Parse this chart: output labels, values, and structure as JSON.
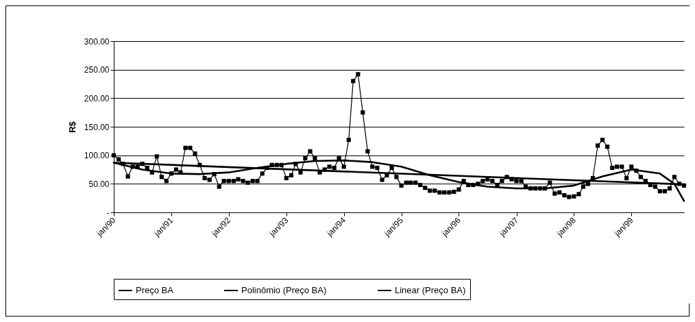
{
  "chart_data": {
    "type": "line",
    "ylabel": "R$",
    "xlim": [
      "1990-01",
      "1999-12"
    ],
    "xticks": [
      {
        "value": "1990-01",
        "label": "jan/90"
      },
      {
        "value": "1991-01",
        "label": "jan/91"
      },
      {
        "value": "1992-01",
        "label": "jan/92"
      },
      {
        "value": "1993-01",
        "label": "jan/93"
      },
      {
        "value": "1994-01",
        "label": "jan/94"
      },
      {
        "value": "1995-01",
        "label": "jan/95"
      },
      {
        "value": "1996-01",
        "label": "jan/96"
      },
      {
        "value": "1997-01",
        "label": "jan/97"
      },
      {
        "value": "1998-01",
        "label": "jan/98"
      },
      {
        "value": "1999-01",
        "label": "jan/99"
      }
    ],
    "ylim": [
      0,
      300
    ],
    "yticks": [
      {
        "value": 0,
        "label": "-"
      },
      {
        "value": 50,
        "label": "50.00"
      },
      {
        "value": 100,
        "label": "100.00"
      },
      {
        "value": 150,
        "label": "150.00"
      },
      {
        "value": 200,
        "label": "200.00"
      },
      {
        "value": 250,
        "label": "250.00"
      },
      {
        "value": 300,
        "label": "300.00"
      }
    ],
    "grid": "y",
    "legend": "bottom",
    "series": [
      {
        "name": "Preço BA",
        "color": "#000000",
        "marker": "square",
        "x": [
          "1990-01",
          "1990-02",
          "1990-03",
          "1990-04",
          "1990-05",
          "1990-06",
          "1990-07",
          "1990-08",
          "1990-09",
          "1990-10",
          "1990-11",
          "1990-12",
          "1991-01",
          "1991-02",
          "1991-03",
          "1991-04",
          "1991-05",
          "1991-06",
          "1991-07",
          "1991-08",
          "1991-09",
          "1991-10",
          "1991-11",
          "1991-12",
          "1992-01",
          "1992-02",
          "1992-03",
          "1992-04",
          "1992-05",
          "1992-06",
          "1992-07",
          "1992-08",
          "1992-09",
          "1992-10",
          "1992-11",
          "1992-12",
          "1993-01",
          "1993-02",
          "1993-03",
          "1993-04",
          "1993-05",
          "1993-06",
          "1993-07",
          "1993-08",
          "1993-09",
          "1993-10",
          "1993-11",
          "1993-12",
          "1994-01",
          "1994-02",
          "1994-03",
          "1994-04",
          "1994-05",
          "1994-06",
          "1994-07",
          "1994-08",
          "1994-09",
          "1994-10",
          "1994-11",
          "1994-12",
          "1995-01",
          "1995-02",
          "1995-03",
          "1995-04",
          "1995-05",
          "1995-06",
          "1995-07",
          "1995-08",
          "1995-09",
          "1995-10",
          "1995-11",
          "1995-12",
          "1996-01",
          "1996-02",
          "1996-03",
          "1996-04",
          "1996-05",
          "1996-06",
          "1996-07",
          "1996-08",
          "1996-09",
          "1996-10",
          "1996-11",
          "1996-12",
          "1997-01",
          "1997-02",
          "1997-03",
          "1997-04",
          "1997-05",
          "1997-06",
          "1997-07",
          "1997-08",
          "1997-09",
          "1997-10",
          "1997-11",
          "1997-12",
          "1998-01",
          "1998-02",
          "1998-03",
          "1998-04",
          "1998-05",
          "1998-06",
          "1998-07",
          "1998-08",
          "1998-09",
          "1998-10",
          "1998-11",
          "1998-12",
          "1999-01",
          "1999-02",
          "1999-03",
          "1999-04",
          "1999-05",
          "1999-06",
          "1999-07",
          "1999-08",
          "1999-09",
          "1999-10",
          "1999-11",
          "1999-12"
        ],
        "values": [
          100,
          93,
          85,
          63,
          80,
          80,
          85,
          78,
          70,
          98,
          62,
          55,
          68,
          75,
          70,
          113,
          113,
          103,
          83,
          60,
          57,
          67,
          45,
          55,
          55,
          55,
          58,
          55,
          52,
          55,
          55,
          68,
          78,
          83,
          83,
          83,
          60,
          65,
          85,
          70,
          95,
          107,
          95,
          70,
          75,
          80,
          78,
          95,
          80,
          127,
          230,
          242,
          175,
          107,
          80,
          78,
          57,
          65,
          78,
          62,
          47,
          52,
          52,
          52,
          48,
          43,
          38,
          38,
          35,
          35,
          35,
          36,
          40,
          55,
          48,
          48,
          50,
          55,
          58,
          55,
          48,
          55,
          62,
          58,
          55,
          55,
          45,
          42,
          42,
          42,
          42,
          52,
          33,
          35,
          30,
          27,
          28,
          32,
          45,
          50,
          60,
          117,
          127,
          115,
          78,
          80,
          80,
          60,
          80,
          73,
          62,
          55,
          48,
          45,
          37,
          37,
          42,
          62,
          50,
          47
        ]
      },
      {
        "name": "Polinômio (Preço BA)",
        "color": "#000000",
        "marker": "none",
        "x": [
          "1990-01",
          "1990-07",
          "1991-01",
          "1991-07",
          "1992-01",
          "1992-07",
          "1993-01",
          "1993-07",
          "1994-01",
          "1994-07",
          "1995-01",
          "1995-07",
          "1996-01",
          "1996-07",
          "1997-01",
          "1997-07",
          "1998-01",
          "1998-07",
          "1999-01",
          "1999-07",
          "1999-10",
          "1999-12"
        ],
        "values": [
          87,
          75,
          68,
          67,
          70,
          78,
          85,
          90,
          91,
          88,
          80,
          65,
          53,
          45,
          42,
          42,
          47,
          63,
          75,
          68,
          50,
          20
        ]
      },
      {
        "name": "Linear (Preço BA)",
        "color": "#000000",
        "marker": "none",
        "x": [
          "1990-01",
          "1999-12"
        ],
        "values": [
          87,
          49
        ]
      }
    ]
  }
}
